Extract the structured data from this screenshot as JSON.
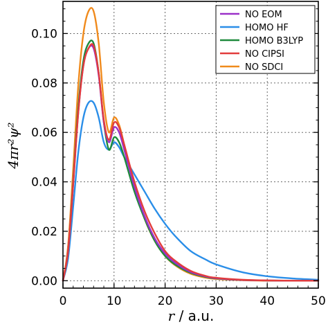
{
  "chart_data": {
    "type": "line",
    "xlabel_var": "r",
    "xlabel_unit": " / a.u.",
    "ylabel": "4πr²ψ²",
    "xlim": [
      0,
      50
    ],
    "ylim": [
      -0.003,
      0.113
    ],
    "x_ticks": [
      0,
      10,
      20,
      30,
      40,
      50
    ],
    "y_ticks": [
      0.0,
      0.02,
      0.04,
      0.06,
      0.08,
      0.1
    ],
    "x_tick_labels": [
      "0",
      "10",
      "20",
      "30",
      "40",
      "50"
    ],
    "y_tick_labels": [
      "0.00",
      "0.02",
      "0.04",
      "0.06",
      "0.08",
      "0.10"
    ],
    "grid": true,
    "legend_position": "top-right",
    "series": [
      {
        "name": "NO EOM",
        "color": "#9b30c8",
        "x": [
          0,
          1,
          2,
          3,
          4,
          5,
          6,
          7,
          8,
          9,
          10,
          11,
          12,
          14,
          16,
          18,
          20,
          22,
          25,
          28,
          30,
          35,
          40,
          45,
          50
        ],
        "y": [
          0,
          0.012,
          0.039,
          0.068,
          0.087,
          0.094,
          0.094,
          0.083,
          0.064,
          0.056,
          0.062,
          0.06,
          0.053,
          0.038,
          0.026,
          0.017,
          0.011,
          0.0072,
          0.0035,
          0.0017,
          0.001,
          0.0003,
          0.0001,
          0.0,
          0.0
        ]
      },
      {
        "name": "HOMO HF",
        "color": "#2a8ee8",
        "x": [
          0,
          1,
          2,
          3,
          4,
          5,
          6,
          7,
          8,
          9,
          10,
          11,
          12,
          14,
          16,
          18,
          20,
          22,
          25,
          28,
          30,
          35,
          40,
          45,
          50
        ],
        "y": [
          0,
          0.009,
          0.03,
          0.052,
          0.066,
          0.072,
          0.072,
          0.066,
          0.056,
          0.053,
          0.056,
          0.054,
          0.05,
          0.043,
          0.036,
          0.029,
          0.023,
          0.018,
          0.012,
          0.0085,
          0.0066,
          0.0035,
          0.0018,
          0.0009,
          0.0004
        ]
      },
      {
        "name": "HOMO B3LYP",
        "color": "#1e8a3c",
        "x": [
          0,
          1,
          2,
          3,
          4,
          5,
          6,
          7,
          8,
          9,
          10,
          11,
          12,
          14,
          16,
          18,
          20,
          22,
          25,
          28,
          30,
          35,
          40,
          45,
          50
        ],
        "y": [
          0,
          0.012,
          0.04,
          0.07,
          0.089,
          0.096,
          0.096,
          0.084,
          0.064,
          0.053,
          0.058,
          0.056,
          0.05,
          0.036,
          0.025,
          0.016,
          0.01,
          0.0065,
          0.0032,
          0.0015,
          0.0009,
          0.0003,
          0.0001,
          0.0,
          0.0
        ]
      },
      {
        "name": "NO CIPSI",
        "color": "#e23c3c",
        "x": [
          0,
          1,
          2,
          3,
          4,
          5,
          6,
          7,
          8,
          9,
          10,
          11,
          12,
          14,
          16,
          18,
          20,
          22,
          25,
          28,
          30,
          35,
          40,
          45,
          50
        ],
        "y": [
          0,
          0.012,
          0.039,
          0.068,
          0.087,
          0.094,
          0.095,
          0.084,
          0.065,
          0.057,
          0.064,
          0.062,
          0.055,
          0.04,
          0.028,
          0.019,
          0.012,
          0.008,
          0.004,
          0.0019,
          0.0012,
          0.0004,
          0.0001,
          0.0,
          0.0
        ]
      },
      {
        "name": "NO SDCI",
        "color": "#f08a1c",
        "x": [
          0,
          1,
          2,
          3,
          4,
          5,
          6,
          7,
          8,
          9,
          10,
          11,
          12,
          14,
          16,
          18,
          20,
          22,
          25,
          28,
          30,
          35,
          40,
          45,
          50
        ],
        "y": [
          0,
          0.014,
          0.045,
          0.079,
          0.1,
          0.109,
          0.109,
          0.096,
          0.072,
          0.06,
          0.066,
          0.063,
          0.055,
          0.038,
          0.025,
          0.016,
          0.01,
          0.0062,
          0.0028,
          0.0012,
          0.0007,
          0.0002,
          0.0,
          0.0,
          0.0
        ]
      }
    ]
  }
}
